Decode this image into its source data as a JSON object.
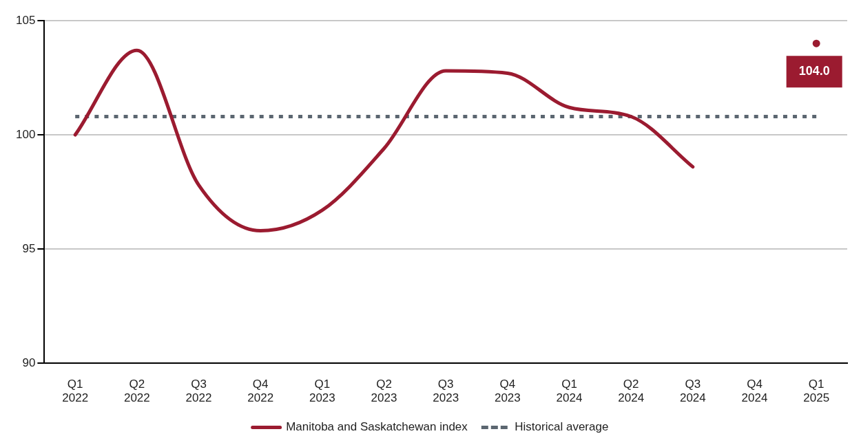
{
  "chart_data": {
    "type": "line",
    "categories": [
      "Q1 2022",
      "Q2 2022",
      "Q3 2022",
      "Q4 2022",
      "Q1 2023",
      "Q2 2023",
      "Q3 2023",
      "Q4 2023",
      "Q1 2024",
      "Q2 2024",
      "Q3 2024",
      "Q4 2024",
      "Q1 2025"
    ],
    "series": [
      {
        "name": "Manitoba and Saskatchewan index",
        "color": "#9b1b30",
        "line_style": "solid",
        "values": [
          100.0,
          103.7,
          97.8,
          95.8,
          96.7,
          99.4,
          102.8,
          102.7,
          101.2,
          100.8,
          98.6,
          null,
          104.0
        ]
      },
      {
        "name": "Historical average",
        "color": "#5b6670",
        "line_style": "dotted",
        "values": [
          100.8,
          100.8,
          100.8,
          100.8,
          100.8,
          100.8,
          100.8,
          100.8,
          100.8,
          100.8,
          100.8,
          100.8,
          100.8
        ]
      }
    ],
    "ylim": [
      90,
      105
    ],
    "yticks": [
      90,
      95,
      100,
      105
    ],
    "grid": "y",
    "legend": "bottom",
    "marker": "none",
    "annotations": [
      {
        "text": "104.0",
        "x": "Q1 2025",
        "y": 104
      }
    ]
  }
}
